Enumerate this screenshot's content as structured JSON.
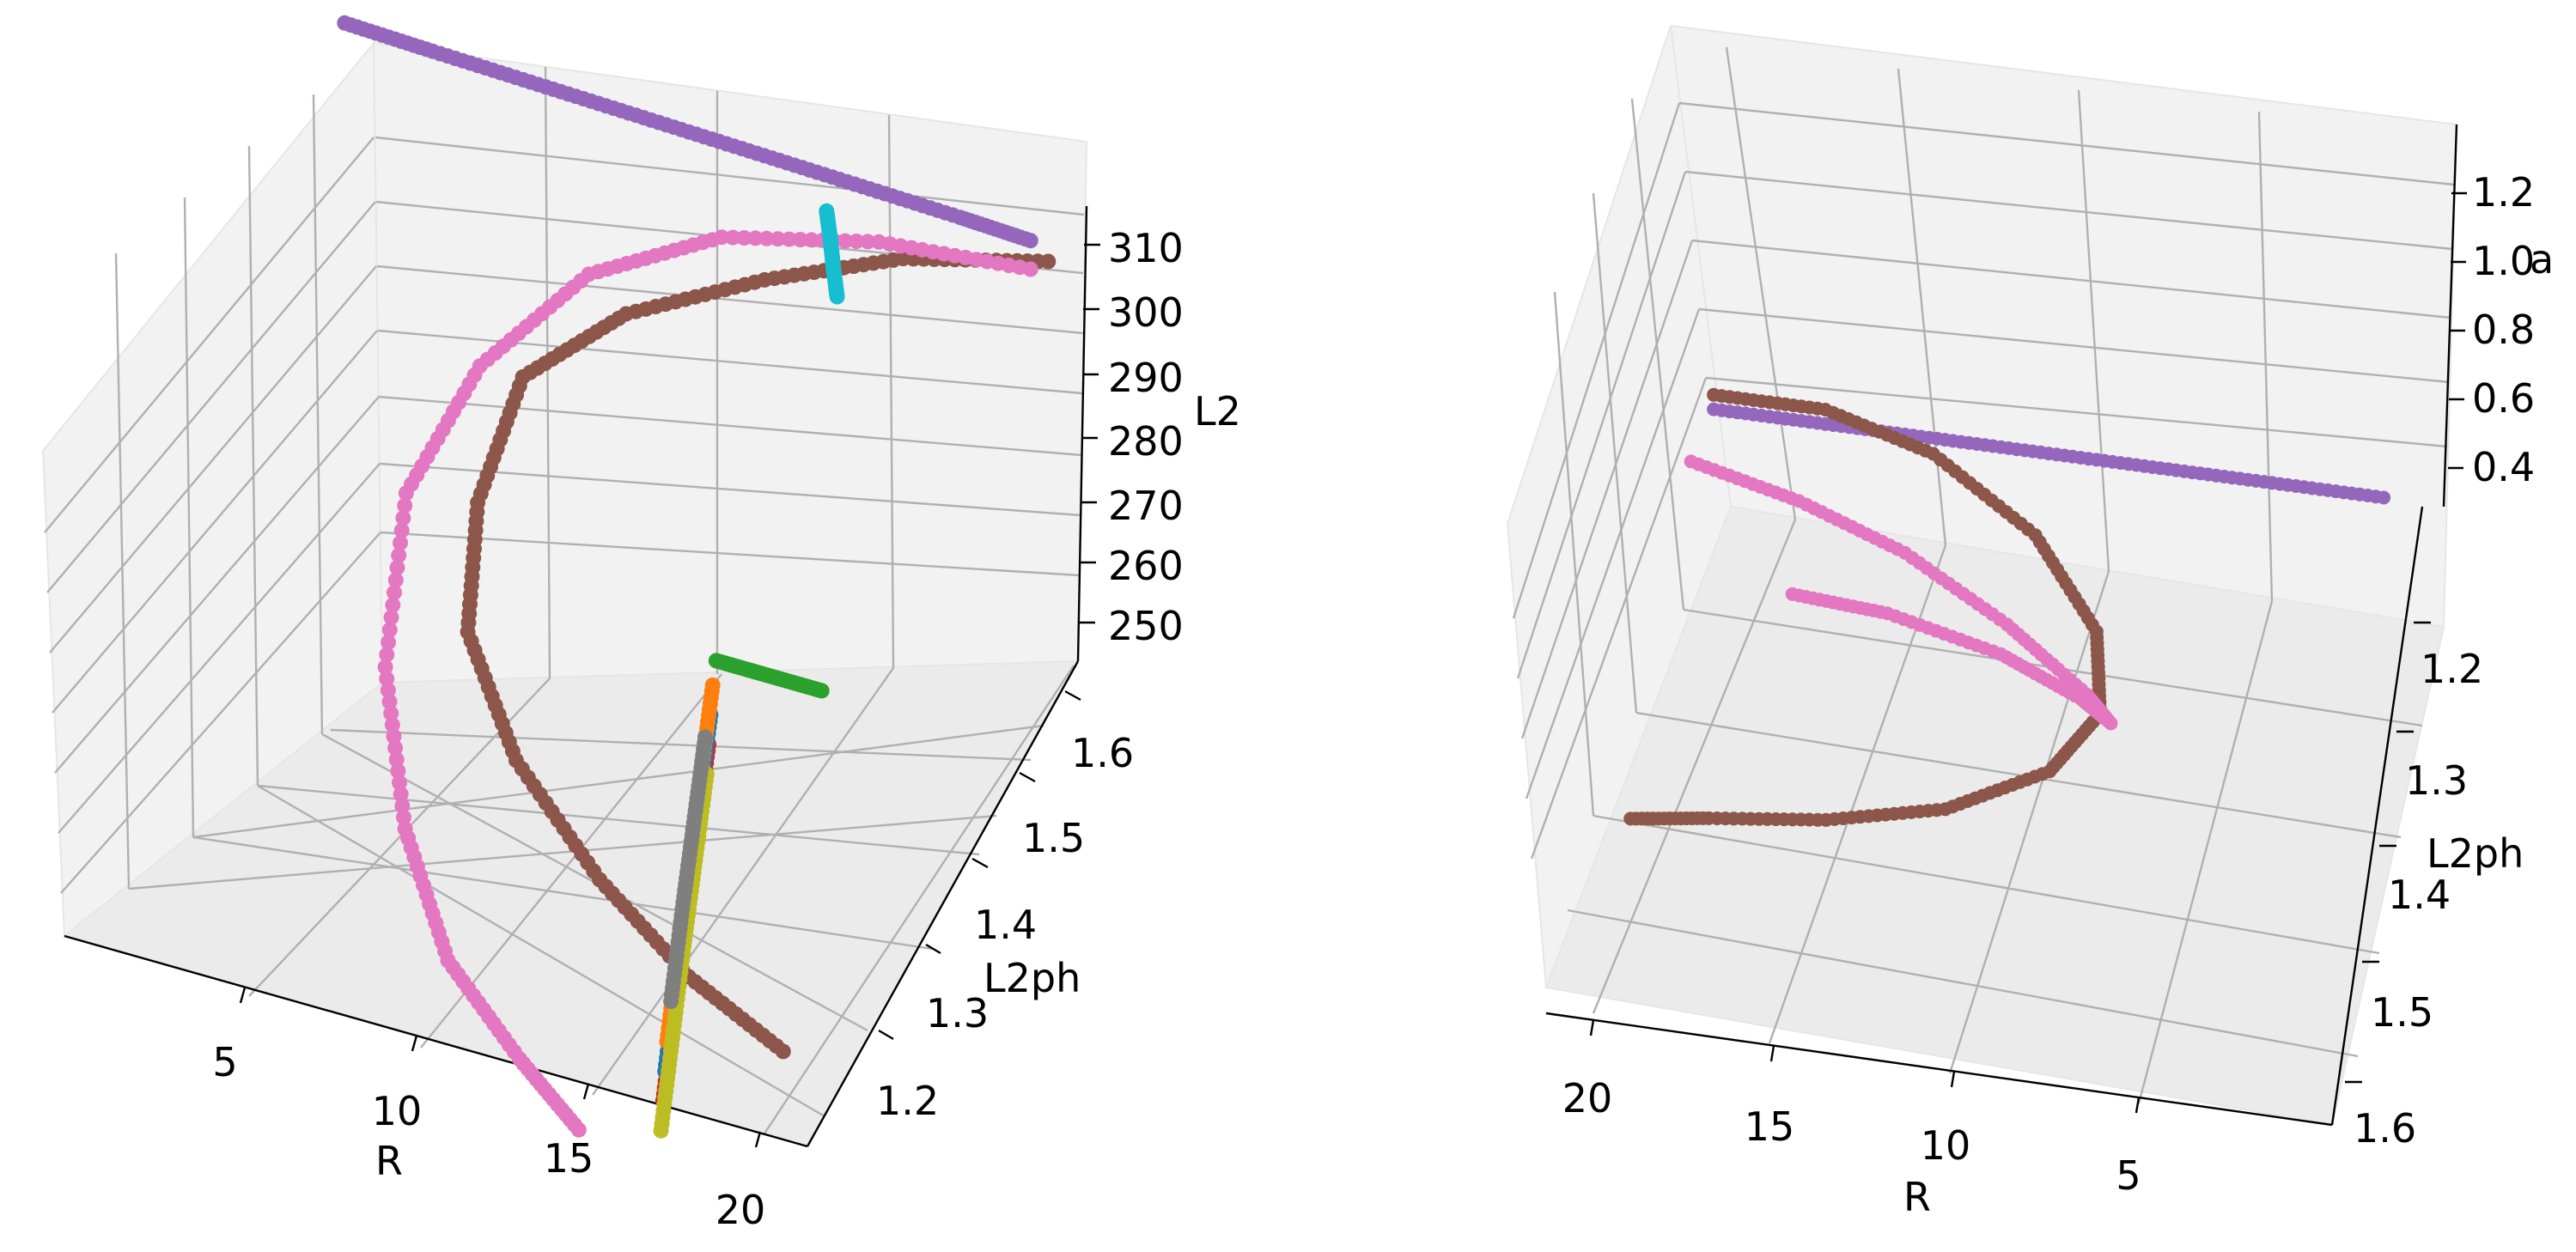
{
  "chart_data": [
    {
      "type": "scatter",
      "view": "left",
      "xlabel": "R",
      "ylabel": "L2ph",
      "zlabel": "L2",
      "x_ticks": [
        "5",
        "10",
        "15",
        "20"
      ],
      "y_ticks": [
        "1.2",
        "1.3",
        "1.4",
        "1.5",
        "1.6"
      ],
      "z_ticks": [
        "250",
        "260",
        "270",
        "280",
        "290",
        "300",
        "310"
      ],
      "xlim": [
        0,
        21
      ],
      "ylim": [
        1.15,
        1.65
      ],
      "zlim": [
        245,
        318
      ],
      "series": [
        {
          "color": "#9467bd",
          "x": [
            0.5,
            3,
            6,
            9,
            12,
            15,
            18,
            20
          ],
          "y": [
            1.62,
            1.62,
            1.62,
            1.62,
            1.62,
            1.62,
            1.62,
            1.62
          ],
          "z": [
            317,
            316.5,
            316,
            315.5,
            315,
            314.5,
            314,
            313.5
          ]
        },
        {
          "color": "#8c564b",
          "x": [
            20.5,
            17,
            14,
            11,
            9,
            8.5,
            9,
            11,
            14,
            17,
            20
          ],
          "y": [
            1.62,
            1.58,
            1.52,
            1.46,
            1.4,
            1.35,
            1.3,
            1.26,
            1.22,
            1.19,
            1.17
          ],
          "z": [
            311,
            312,
            313,
            312,
            308,
            295,
            283,
            272,
            264,
            258,
            254
          ]
        },
        {
          "color": "#e377c2",
          "x": [
            20,
            16,
            12,
            9,
            7,
            6,
            6.5,
            8,
            10,
            12.5,
            14.5
          ],
          "y": [
            1.62,
            1.6,
            1.57,
            1.52,
            1.45,
            1.38,
            1.31,
            1.25,
            1.2,
            1.17,
            1.15
          ],
          "z": [
            309,
            310,
            309,
            306,
            299,
            288,
            272,
            258,
            248,
            241,
            236
          ]
        },
        {
          "color": "#17becf",
          "x": [
            14.2,
            14.3,
            14.4,
            14.5
          ],
          "y": [
            1.62,
            1.62,
            1.62,
            1.62
          ],
          "z": [
            309,
            305,
            300,
            296
          ]
        },
        {
          "color": "#2ca02c",
          "x": [
            14.5,
            15.5,
            16.5,
            17.5
          ],
          "y": [
            1.4,
            1.4,
            1.4,
            1.4
          ],
          "z": [
            272,
            272,
            272,
            272
          ]
        },
        {
          "color": "#d62728",
          "x": [
            14.6,
            14.9,
            15.2,
            15.5,
            15.8
          ],
          "y": [
            1.38,
            1.34,
            1.3,
            1.26,
            1.22
          ],
          "z": [
            262,
            255,
            248,
            240,
            232
          ]
        },
        {
          "color": "#1f77b4",
          "x": [
            14.5,
            14.8,
            15.1,
            15.4,
            15.7
          ],
          "y": [
            1.39,
            1.35,
            1.31,
            1.27,
            1.23
          ],
          "z": [
            265,
            258,
            251,
            243,
            235
          ]
        },
        {
          "color": "#ff7f0e",
          "x": [
            14.4,
            14.7,
            15.0,
            15.3,
            15.6
          ],
          "y": [
            1.4,
            1.36,
            1.32,
            1.28,
            1.24
          ],
          "z": [
            268,
            261,
            254,
            246,
            238
          ]
        },
        {
          "color": "#bcbd22",
          "x": [
            14.7,
            15.0,
            15.3,
            15.6,
            15.9
          ],
          "y": [
            1.37,
            1.33,
            1.29,
            1.25,
            1.21
          ],
          "z": [
            259,
            252,
            245,
            237,
            229
          ]
        },
        {
          "color": "#7f7f7f",
          "x": [
            14.5,
            14.8,
            15.1,
            15.4
          ],
          "y": [
            1.38,
            1.34,
            1.3,
            1.26
          ],
          "z": [
            263,
            256,
            249,
            241
          ]
        }
      ]
    },
    {
      "type": "scatter",
      "view": "right",
      "xlabel": "R",
      "ylabel": "L2ph",
      "zlabel": "",
      "x_ticks": [
        "20",
        "15",
        "10",
        "5"
      ],
      "y_ticks": [
        "1.2",
        "1.3",
        "1.4",
        "1.5",
        "1.6"
      ],
      "z_ticks": [
        "0.4",
        "0.6",
        "0.8",
        "1.0",
        "1.2"
      ],
      "z_offset_label": "a",
      "xlim": [
        0,
        21
      ],
      "ylim": [
        1.15,
        1.65
      ],
      "zlim": [
        0.3,
        1.3
      ],
      "series": [
        {
          "color": "#9467bd",
          "x": [
            19,
            16,
            13,
            10,
            7,
            4,
            1
          ],
          "y": [
            1.62,
            1.62,
            1.62,
            1.62,
            1.62,
            1.62,
            1.62
          ],
          "z": [
            0.35,
            0.35,
            0.35,
            0.35,
            0.35,
            0.35,
            0.35
          ]
        },
        {
          "color": "#8c564b",
          "x": [
            19,
            16,
            13,
            10,
            8,
            7.5,
            8.5,
            11,
            14,
            17,
            19
          ],
          "y": [
            1.62,
            1.62,
            1.6,
            1.55,
            1.48,
            1.4,
            1.33,
            1.27,
            1.23,
            1.2,
            1.18
          ],
          "z": [
            0.38,
            0.38,
            0.37,
            0.36,
            0.36,
            0.4,
            0.45,
            0.5,
            0.55,
            0.6,
            0.63
          ]
        },
        {
          "color": "#e377c2",
          "x": [
            19,
            16,
            13,
            10,
            7.5,
            6.5,
            7,
            9,
            12,
            14.5
          ],
          "y": [
            1.5,
            1.48,
            1.45,
            1.4,
            1.33,
            1.26,
            1.2,
            1.17,
            1.16,
            1.15
          ],
          "z": [
            0.55,
            0.55,
            0.55,
            0.56,
            0.62,
            0.75,
            0.95,
            1.1,
            1.18,
            1.22
          ]
        }
      ]
    }
  ]
}
